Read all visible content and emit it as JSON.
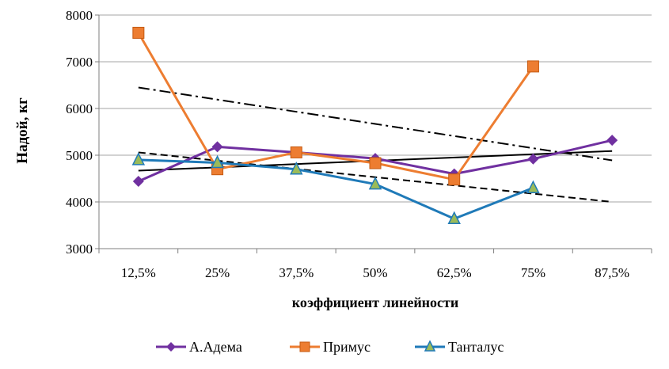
{
  "chart_data": {
    "type": "line",
    "title": "",
    "xlabel": "коэффициент линейности",
    "ylabel": "Надой, кг",
    "categories": [
      "12,5%",
      "25%",
      "37,5%",
      "50%",
      "62,5%",
      "75%",
      "87,5%"
    ],
    "ylim": [
      3000,
      8000
    ],
    "yticks": [
      3000,
      4000,
      5000,
      6000,
      7000,
      8000
    ],
    "yticklabels": [
      "3000",
      "4000",
      "5000",
      "6000",
      "7000",
      "8000"
    ],
    "grid": "horizontal",
    "legend_position": "bottom",
    "series": [
      {
        "name": "А.Адема",
        "color": "#7030a0",
        "marker": "diamond",
        "values": [
          4440,
          5180,
          5060,
          4930,
          4600,
          4920,
          5320
        ]
      },
      {
        "name": "Примус",
        "color": "#ed7d31",
        "marker": "square",
        "values": [
          7620,
          4700,
          5060,
          4830,
          4480,
          6900,
          null
        ]
      },
      {
        "name": "Танталус",
        "color": "#1f7ab8",
        "marker": "triangle",
        "values": [
          4900,
          4840,
          4700,
          4380,
          3640,
          4300,
          null
        ]
      }
    ],
    "trendlines": [
      {
        "style": "solid",
        "color": "#000000",
        "x": [
          1,
          7
        ],
        "values": [
          4670,
          5090
        ]
      },
      {
        "style": "dash-dot",
        "color": "#000000",
        "x": [
          1,
          7
        ],
        "values": [
          6450,
          4890
        ]
      },
      {
        "style": "dashed",
        "color": "#000000",
        "x": [
          1,
          7
        ],
        "values": [
          5060,
          4000
        ]
      }
    ]
  }
}
